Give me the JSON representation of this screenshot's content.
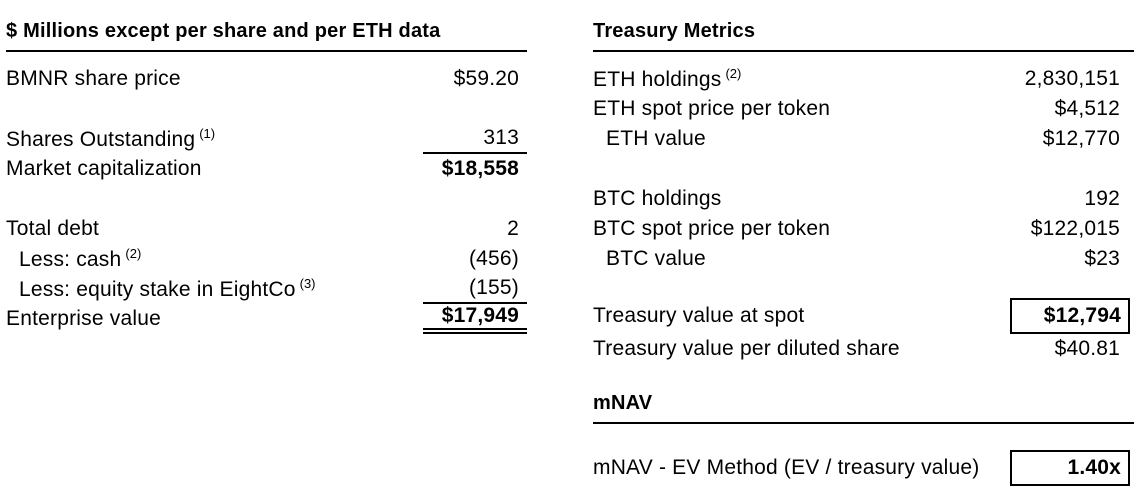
{
  "left_table": {
    "title": "$ Millions except per share and per ETH data",
    "rows": [
      {
        "label": "BMNR share price",
        "sup": "",
        "value": "$59.20"
      },
      {
        "label": "Shares Outstanding",
        "sup": "(1)",
        "value": "313"
      },
      {
        "label": "Market capitalization",
        "sup": "",
        "value": "$18,558"
      },
      {
        "label": "Total debt",
        "sup": "",
        "value": "2"
      },
      {
        "label": "Less: cash",
        "sup": "(2)",
        "value": "(456)"
      },
      {
        "label": "Less: equity stake in EightCo",
        "sup": "(3)",
        "value": "(155)"
      },
      {
        "label": "Enterprise value",
        "sup": "",
        "value": "$17,949"
      }
    ]
  },
  "right_table": {
    "title": "Treasury Metrics",
    "rows": [
      {
        "label": "ETH holdings",
        "sup": "(2)",
        "value": "2,830,151"
      },
      {
        "label": "ETH spot price per token",
        "sup": "",
        "value": "$4,512"
      },
      {
        "label": "ETH value",
        "sup": "",
        "value": "$12,770"
      },
      {
        "label": "BTC holdings",
        "sup": "",
        "value": "192"
      },
      {
        "label": "BTC spot price per token",
        "sup": "",
        "value": "$122,015"
      },
      {
        "label": "BTC value",
        "sup": "",
        "value": "$23"
      },
      {
        "label": "Treasury value at spot",
        "sup": "",
        "value": "$12,794"
      },
      {
        "label": "Treasury value per diluted share",
        "sup": "",
        "value": "$40.81"
      }
    ]
  },
  "mnav_section": {
    "title": "mNAV",
    "rows": [
      {
        "label": "mNAV - EV Method (EV / treasury value)",
        "sup": "",
        "value": "1.40x"
      }
    ]
  },
  "colors": {
    "background": "#ffffff",
    "text": "#000000",
    "rule": "#000000"
  }
}
